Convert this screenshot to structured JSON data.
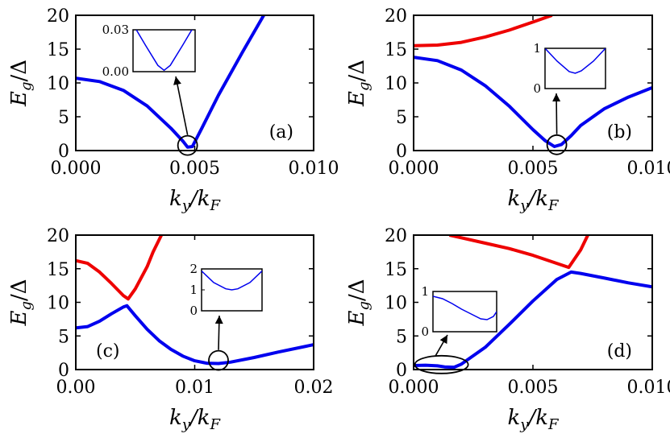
{
  "ylabel_main": "E",
  "ylabel_sub": "g",
  "ylabel_rest": "/Δ",
  "xlabel_main": "k",
  "xlabel_sub": "y",
  "xlabel_mid": "/k",
  "xlabel_sub2": "F",
  "colors": {
    "blue": "#0000ee",
    "red": "#ee0000",
    "axis": "#000000"
  },
  "chart_data": [
    {
      "type": "line",
      "panel_label": "(a)",
      "xlim": [
        0,
        0.01
      ],
      "ylim": [
        0,
        20
      ],
      "xticks": [
        "0.000",
        "0.005",
        "0.010"
      ],
      "yticks": [
        "0",
        "5",
        "10",
        "15",
        "20"
      ],
      "series": [
        {
          "color": "blue",
          "x": [
            0,
            0.001,
            0.002,
            0.003,
            0.004,
            0.0045,
            0.0047,
            0.0049,
            0.0053,
            0.006,
            0.007,
            0.0079
          ],
          "y": [
            10.7,
            10.2,
            8.9,
            6.6,
            3.3,
            1.4,
            0.5,
            0.6,
            3.3,
            8.2,
            14.5,
            20
          ]
        }
      ],
      "zoom_circle": {
        "x": 0.0047,
        "y": 0.4
      },
      "inset": {
        "yticks": [
          "0.03",
          "0.00"
        ],
        "curve": {
          "x": [
            0,
            0.2,
            0.4,
            0.5,
            0.6,
            0.8,
            1.0
          ],
          "y": [
            0.034,
            0.019,
            0.0045,
            0.001,
            0.0045,
            0.019,
            0.034
          ],
          "ylim": [
            0,
            0.03
          ]
        }
      }
    },
    {
      "type": "line",
      "panel_label": "(b)",
      "xlim": [
        0,
        0.01
      ],
      "ylim": [
        0,
        20
      ],
      "xticks": [
        "0.000",
        "0.005",
        "0.010"
      ],
      "yticks": [
        "0",
        "5",
        "10",
        "15",
        "20"
      ],
      "series": [
        {
          "color": "blue",
          "x": [
            0,
            0.001,
            0.002,
            0.003,
            0.004,
            0.005,
            0.0055,
            0.0059,
            0.0062,
            0.0066,
            0.007,
            0.008,
            0.009,
            0.01
          ],
          "y": [
            13.8,
            13.3,
            11.9,
            9.6,
            6.6,
            3.1,
            1.5,
            0.6,
            0.9,
            2.2,
            3.7,
            6.2,
            7.9,
            9.3
          ]
        },
        {
          "color": "red",
          "x": [
            0,
            0.001,
            0.002,
            0.003,
            0.004,
            0.005,
            0.0058
          ],
          "y": [
            15.5,
            15.6,
            16.0,
            16.8,
            17.8,
            19.0,
            20
          ]
        }
      ],
      "zoom_circle": {
        "x": 0.006,
        "y": 0.5
      },
      "inset": {
        "yticks": [
          "1",
          "0"
        ],
        "curve": {
          "x": [
            0,
            0.2,
            0.4,
            0.5,
            0.6,
            0.8,
            1.0
          ],
          "y": [
            1.0,
            0.68,
            0.42,
            0.38,
            0.44,
            0.68,
            1.0
          ],
          "ylim": [
            0,
            1
          ]
        }
      }
    },
    {
      "type": "line",
      "panel_label": "(c)",
      "xlim": [
        0,
        0.02
      ],
      "ylim": [
        0,
        20
      ],
      "xticks": [
        "0.00",
        "0.01",
        "0.02"
      ],
      "yticks": [
        "0",
        "5",
        "10",
        "15",
        "20"
      ],
      "series": [
        {
          "color": "blue",
          "x": [
            0,
            0.001,
            0.002,
            0.003,
            0.004,
            0.0043,
            0.005,
            0.006,
            0.007,
            0.008,
            0.009,
            0.01,
            0.011,
            0.012,
            0.013,
            0.015,
            0.017,
            0.02
          ],
          "y": [
            6.2,
            6.4,
            7.2,
            8.3,
            9.3,
            9.5,
            8.0,
            6.0,
            4.3,
            3.0,
            2.0,
            1.3,
            0.95,
            0.9,
            1.1,
            1.8,
            2.6,
            3.7
          ]
        },
        {
          "color": "red",
          "x": [
            0,
            0.001,
            0.002,
            0.003,
            0.004,
            0.0044,
            0.005,
            0.006,
            0.0065,
            0.0072
          ],
          "y": [
            16.2,
            15.8,
            14.5,
            12.8,
            11.0,
            10.5,
            12.0,
            15.3,
            17.5,
            20
          ]
        }
      ],
      "zoom_circle": {
        "x": 0.012,
        "y": 1.0
      },
      "inset": {
        "yticks": [
          "2",
          "1",
          "0"
        ],
        "curve": {
          "x": [
            0,
            0.2,
            0.4,
            0.5,
            0.6,
            0.8,
            1.0
          ],
          "y": [
            1.9,
            1.35,
            1.05,
            1.0,
            1.05,
            1.35,
            1.9
          ],
          "ylim": [
            0,
            2
          ]
        }
      }
    },
    {
      "type": "line",
      "panel_label": "(d)",
      "xlim": [
        0,
        0.01
      ],
      "ylim": [
        0,
        20
      ],
      "xticks": [
        "0.000",
        "0.005",
        "0.010"
      ],
      "yticks": [
        "0",
        "5",
        "10",
        "15",
        "20"
      ],
      "series": [
        {
          "color": "blue",
          "x": [
            0,
            0.0005,
            0.001,
            0.0013,
            0.0017,
            0.002,
            0.003,
            0.004,
            0.005,
            0.006,
            0.0066,
            0.007,
            0.008,
            0.009,
            0.01
          ],
          "y": [
            0.6,
            0.65,
            0.55,
            0.4,
            0.35,
            0.8,
            3.3,
            6.7,
            10.2,
            13.4,
            14.5,
            14.3,
            13.6,
            12.9,
            12.3
          ]
        },
        {
          "color": "red",
          "x": [
            0.0015,
            0.002,
            0.003,
            0.004,
            0.005,
            0.006,
            0.0065,
            0.007,
            0.0073
          ],
          "y": [
            20,
            19.6,
            18.8,
            18.0,
            17.0,
            15.8,
            15.2,
            17.8,
            20
          ]
        }
      ],
      "zoom_ellipse": {
        "x": 0.0009,
        "y": 0.5
      },
      "inset": {
        "yticks": [
          "1",
          "0"
        ],
        "curve": {
          "x": [
            0,
            0.15,
            0.3,
            0.45,
            0.6,
            0.75,
            0.85,
            0.95,
            1.0
          ],
          "y": [
            0.88,
            0.82,
            0.7,
            0.56,
            0.44,
            0.32,
            0.3,
            0.38,
            0.5
          ],
          "ylim": [
            0,
            1
          ]
        }
      }
    }
  ]
}
